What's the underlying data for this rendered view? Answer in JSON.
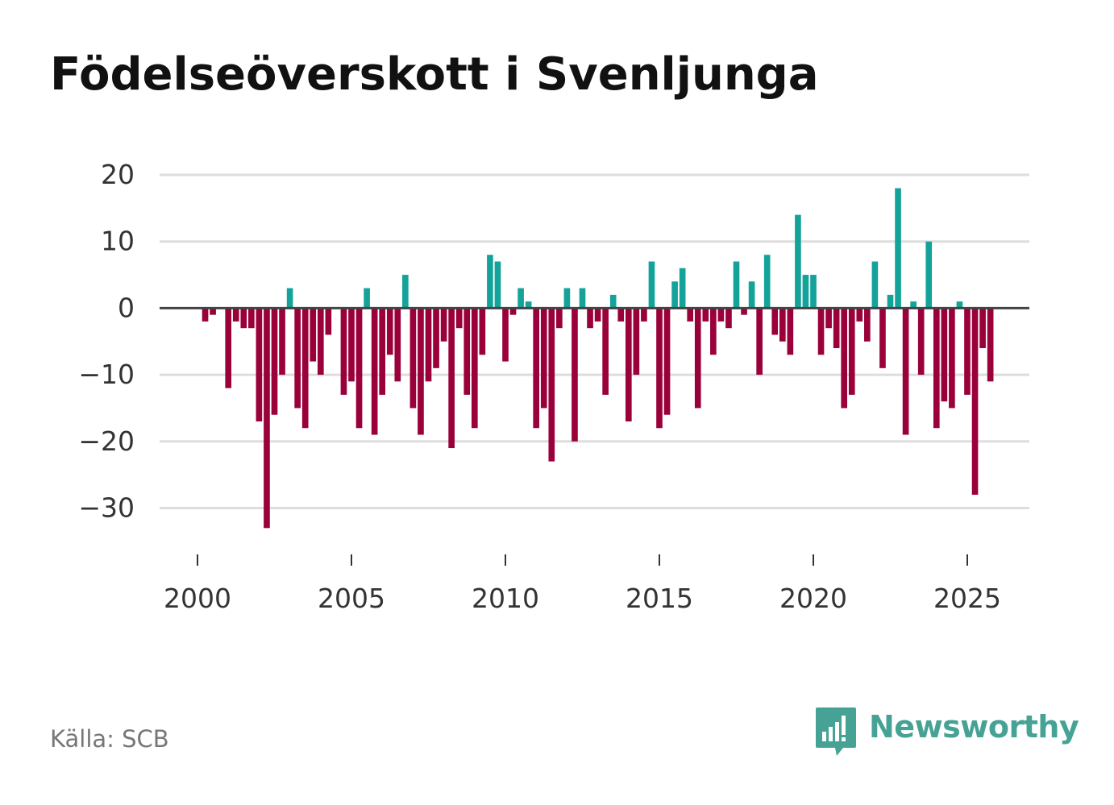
{
  "title": "Födelseöverskott i Svenljunga",
  "source": "Källa: SCB",
  "brand": {
    "name": "Newsworthy",
    "icon": "newsworthy-logo-icon",
    "color": "#45a294"
  },
  "colors": {
    "positive": "#13a39a",
    "negative": "#9a003a",
    "grid": "#dddddd",
    "zero_line": "#444444",
    "axis_text": "#333333"
  },
  "chart_data": {
    "type": "bar",
    "title": "Födelseöverskott i Svenljunga",
    "xlabel": "",
    "ylabel": "",
    "ylim": [
      -38,
      20
    ],
    "y_ticks": [
      20,
      10,
      0,
      -10,
      -20,
      -30
    ],
    "y_tick_labels": [
      "20",
      "10",
      "0",
      "−10",
      "−20",
      "−30"
    ],
    "x_range": [
      1999.25,
      2027.0
    ],
    "x_ticks": [
      2000,
      2005,
      2010,
      2015,
      2020,
      2025
    ],
    "x_tick_labels": [
      "2000",
      "2005",
      "2010",
      "2015",
      "2020",
      "2025"
    ],
    "grid": true,
    "bar_width": 0.2,
    "x": [
      2000.0,
      2000.25,
      2000.5,
      2000.75,
      2001.0,
      2001.25,
      2001.5,
      2001.75,
      2002.0,
      2002.25,
      2002.5,
      2002.75,
      2003.0,
      2003.25,
      2003.5,
      2003.75,
      2004.0,
      2004.25,
      2004.5,
      2004.75,
      2005.0,
      2005.25,
      2005.5,
      2005.75,
      2006.0,
      2006.25,
      2006.5,
      2006.75,
      2007.0,
      2007.25,
      2007.5,
      2007.75,
      2008.0,
      2008.25,
      2008.5,
      2008.75,
      2009.0,
      2009.25,
      2009.5,
      2009.75,
      2010.0,
      2010.25,
      2010.5,
      2010.75,
      2011.0,
      2011.25,
      2011.5,
      2011.75,
      2012.0,
      2012.25,
      2012.5,
      2012.75,
      2013.0,
      2013.25,
      2013.5,
      2013.75,
      2014.0,
      2014.25,
      2014.5,
      2014.75,
      2015.0,
      2015.25,
      2015.5,
      2015.75,
      2016.0,
      2016.25,
      2016.5,
      2016.75,
      2017.0,
      2017.25,
      2017.5,
      2017.75,
      2018.0,
      2018.25,
      2018.5,
      2018.75,
      2019.0,
      2019.25,
      2019.5,
      2019.75,
      2020.0,
      2020.25,
      2020.5,
      2020.75,
      2021.0,
      2021.25,
      2021.5,
      2021.75,
      2022.0,
      2022.25,
      2022.5,
      2022.75,
      2023.0,
      2023.25,
      2023.5,
      2023.75,
      2024.0,
      2024.25,
      2024.5,
      2024.75,
      2025.0,
      2025.25,
      2025.5,
      2025.75
    ],
    "values": [
      0,
      -2,
      -1,
      0,
      -12,
      -2,
      -3,
      -3,
      -17,
      -33,
      -16,
      -10,
      3,
      -15,
      -18,
      -8,
      -10,
      -4,
      0,
      -13,
      -11,
      -18,
      3,
      -19,
      -13,
      -7,
      -11,
      5,
      -15,
      -19,
      -11,
      -9,
      -5,
      -21,
      -3,
      -13,
      -18,
      -7,
      8,
      7,
      -8,
      -1,
      3,
      1,
      -18,
      -15,
      -23,
      -3,
      3,
      -20,
      3,
      -3,
      -2,
      -13,
      2,
      -2,
      -17,
      -10,
      -2,
      7,
      -18,
      -16,
      4,
      6,
      -2,
      -15,
      -2,
      -7,
      -2,
      -3,
      7,
      -1,
      4,
      -10,
      8,
      -4,
      -5,
      -7,
      14,
      5,
      5,
      -7,
      -3,
      -6,
      -15,
      -13,
      -2,
      -5,
      7,
      -9,
      2,
      18,
      -19,
      1,
      -10,
      10,
      -18,
      -14,
      -15,
      1,
      -13,
      -28,
      -6,
      -11
    ]
  }
}
